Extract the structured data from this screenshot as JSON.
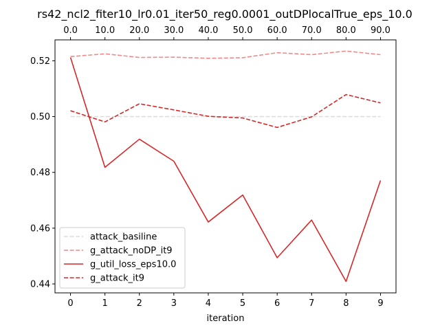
{
  "chart_data": {
    "type": "line",
    "title": "rs42_ncl2_fiter10_lr0.01_iter50_reg0.0001_outDPlocalTrue_eps_10.0",
    "xlabel": "iteration",
    "ylabel": "",
    "x": [
      0,
      1,
      2,
      3,
      4,
      5,
      6,
      7,
      8,
      9
    ],
    "xticks": [
      "0",
      "1",
      "2",
      "3",
      "4",
      "5",
      "6",
      "7",
      "8",
      "9"
    ],
    "xticks_top": [
      "0.0",
      "10.0",
      "20.0",
      "30.0",
      "40.0",
      "50.0",
      "60.0",
      "70.0",
      "80.0",
      "90.0"
    ],
    "yticks": [
      "0.44",
      "0.46",
      "0.48",
      "0.50",
      "0.52"
    ],
    "ytick_values": [
      0.44,
      0.46,
      0.48,
      0.5,
      0.52
    ],
    "xlim": [
      -0.45,
      9.45
    ],
    "ylim": [
      0.4368,
      0.5275
    ],
    "grid": false,
    "legend_position": "lower-left",
    "series": [
      {
        "name": "attack_basiline",
        "color": "#dcdce0",
        "dash": "dashed",
        "values": [
          0.5,
          0.5,
          0.5,
          0.5,
          0.5,
          0.5,
          0.5,
          0.5,
          0.5,
          0.5
        ]
      },
      {
        "name": "g_attack_noDP_it9",
        "color": "#ee8a8a",
        "dash": "dashed",
        "values": [
          0.5215,
          0.5225,
          0.5212,
          0.5213,
          0.5209,
          0.5211,
          0.5229,
          0.5222,
          0.5235,
          0.5222
        ]
      },
      {
        "name": "g_util_loss_eps10.0",
        "color": "#d62728",
        "dash": "solid",
        "values": [
          0.5212,
          0.4818,
          0.4919,
          0.484,
          0.4622,
          0.4719,
          0.4494,
          0.4629,
          0.4409,
          0.4771
        ]
      },
      {
        "name": "g_attack_it9",
        "color": "#d62728",
        "dash": "dashed",
        "values": [
          0.5021,
          0.4981,
          0.5046,
          0.5024,
          0.5001,
          0.4995,
          0.4961,
          0.4999,
          0.5079,
          0.5049
        ]
      }
    ]
  }
}
